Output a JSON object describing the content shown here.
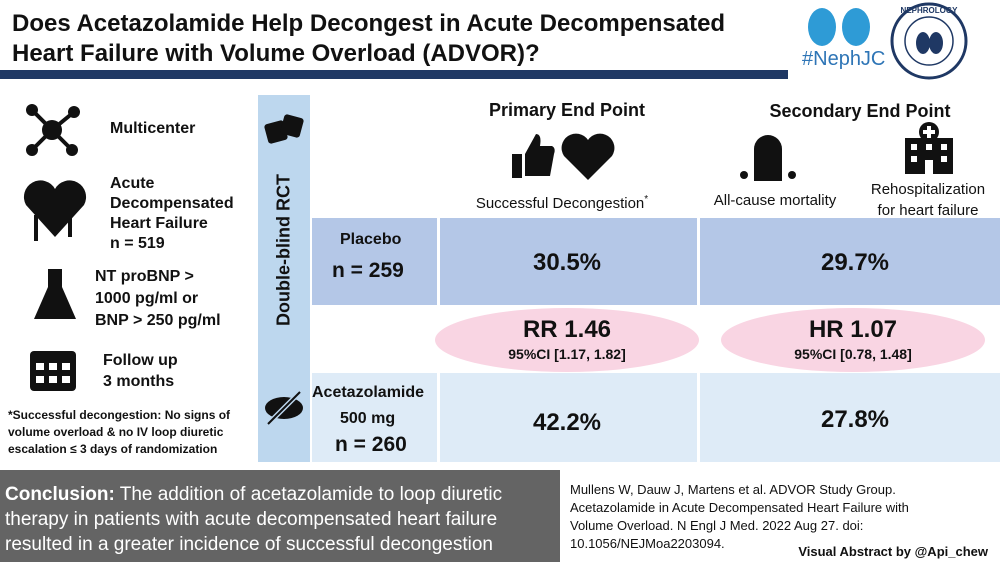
{
  "header": {
    "title_lines": [
      "Does Acetazolamide Help Decongest in Acute Decompensated",
      "Heart Failure with Volume Overload (ADVOR)?"
    ],
    "logo_text": "#NephJC",
    "logo_badge": "NEPHROLOGY"
  },
  "population": {
    "site": "Multicenter",
    "condition_lines": [
      "Acute",
      "Decompensated",
      "Heart Failure",
      "n = 519"
    ],
    "biomarker_lines": [
      "NT proBNP >",
      "1000 pg/ml or",
      "BNP > 250 pg/ml"
    ],
    "follow_up_lines": [
      "Follow up",
      "3 months"
    ],
    "footnote_lines": [
      "*Successful decongestion: No signs of",
      "volume overload & no IV loop diuretic",
      "escalation ≤ 3 days of randomization"
    ]
  },
  "design": "Double-blind RCT",
  "primary": {
    "heading": "Primary End Point",
    "outcome": "Successful Decongestion",
    "mark": "*"
  },
  "secondary": {
    "heading": "Secondary End Point",
    "outcome_1": "All-cause mortality",
    "outcome_2_lines": [
      "Rehospitalization",
      "for heart failure"
    ]
  },
  "placebo": {
    "name": "Placebo",
    "n": "n = 259",
    "primary": "30.5%",
    "secondary": "29.7%"
  },
  "effect": {
    "primary": "RR 1.46",
    "primary_ci": "95%CI [1.17, 1.82]",
    "secondary": "HR 1.07",
    "secondary_ci": "95%CI [0.78, 1.48]"
  },
  "acetazolamide": {
    "name": "Acetazolamide",
    "dose": "500 mg",
    "n": "n = 260",
    "primary": "42.2%",
    "secondary": "27.8%"
  },
  "conclusion": {
    "label": "Conclusion:",
    "lines": [
      " The addition of acetazolamide to loop diuretic",
      "therapy in patients with acute decompensated heart failure",
      "resulted in a greater incidence of successful decongestion"
    ]
  },
  "citation": {
    "lines": [
      "Mullens W, Dauw J, Martens et al. ADVOR Study Group.",
      "Acetazolamide in Acute Decompensated Heart Failure with",
      "Volume Overload. N Engl J Med. 2022 Aug 27. doi:",
      "10.1056/NEJMoa2203094."
    ],
    "credit": "Visual Abstract by @Api_chew"
  }
}
